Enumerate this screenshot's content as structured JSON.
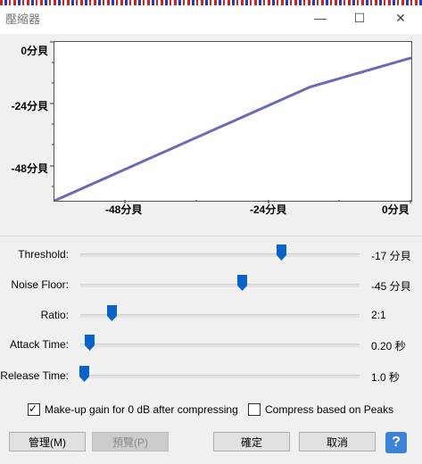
{
  "window": {
    "title": "壓縮器",
    "minimize_glyph": "—",
    "maximize_glyph": "☐",
    "close_glyph": "✕"
  },
  "graph": {
    "y_labels": [
      "0分貝",
      "-24分貝",
      "-48分貝"
    ],
    "x_labels": [
      "-48分貝",
      "-24分貝",
      "0分貝"
    ],
    "curve_color": "#6b6bb5"
  },
  "chart_data": {
    "type": "line",
    "x": [
      -60,
      -17,
      0
    ],
    "y": [
      -60,
      -17,
      -6
    ],
    "xlim": [
      -60,
      0
    ],
    "ylim": [
      -60,
      0
    ],
    "x_ticks": [
      "-48分貝",
      "-24分貝",
      "0分貝"
    ],
    "y_ticks": [
      "0分貝",
      "-24分貝",
      "-48分貝"
    ]
  },
  "controls": [
    {
      "label": "Threshold:",
      "value": "-17 分貝",
      "fraction": 0.72
    },
    {
      "label": "Noise Floor:",
      "value": "-45 分貝",
      "fraction": 0.58
    },
    {
      "label": "Ratio:",
      "value": "2:1",
      "fraction": 0.115
    },
    {
      "label": "Attack Time:",
      "value": "0.20 秒",
      "fraction": 0.035
    },
    {
      "label": "Release Time:",
      "value": "1.0 秒",
      "fraction": 0.015
    }
  ],
  "options": {
    "makeup_gain": {
      "label": "Make-up gain for 0 dB after compressing",
      "checked": true
    },
    "peaks": {
      "label": "Compress based on Peaks",
      "checked": false
    }
  },
  "buttons": {
    "manage": "管理(M)",
    "preview": "預覽(P)",
    "ok": "確定",
    "cancel": "取消",
    "help": "?"
  },
  "colors": {
    "accent": "#0a64c8",
    "help_bg": "#3c82d6"
  }
}
